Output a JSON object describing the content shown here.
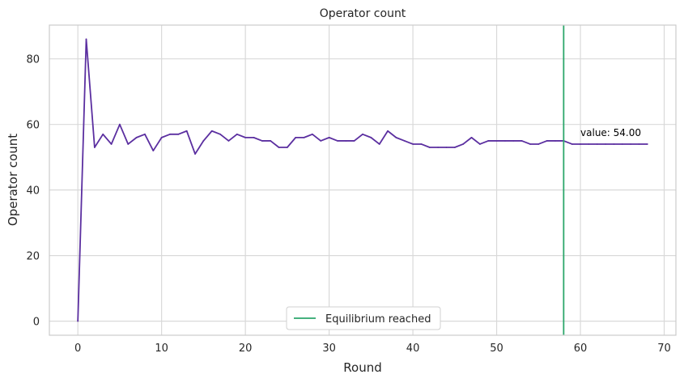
{
  "chart_data": {
    "type": "line",
    "title": "Operator count",
    "xlabel": "Round",
    "ylabel": "Operator count",
    "xlim": [
      -3.4,
      71.4
    ],
    "ylim": [
      -4.3,
      90.3
    ],
    "xticks": [
      0,
      10,
      20,
      30,
      40,
      50,
      60,
      70
    ],
    "yticks": [
      0,
      20,
      40,
      60,
      80
    ],
    "grid": true,
    "series": [
      {
        "color": "#5b2fa0",
        "x": [
          0,
          1,
          2,
          3,
          4,
          5,
          6,
          7,
          8,
          9,
          10,
          11,
          12,
          13,
          14,
          15,
          16,
          17,
          18,
          19,
          20,
          21,
          22,
          23,
          24,
          25,
          26,
          27,
          28,
          29,
          30,
          31,
          32,
          33,
          34,
          35,
          36,
          37,
          38,
          39,
          40,
          41,
          42,
          43,
          44,
          45,
          46,
          47,
          48,
          49,
          50,
          51,
          52,
          53,
          54,
          55,
          56,
          57,
          58,
          59,
          60,
          61,
          62,
          63,
          64,
          65,
          66,
          67,
          68
        ],
        "values": [
          0,
          86,
          53,
          57,
          54,
          60,
          54,
          56,
          57,
          52,
          56,
          57,
          57,
          58,
          51,
          55,
          58,
          57,
          55,
          57,
          56,
          56,
          55,
          55,
          53,
          53,
          56,
          56,
          57,
          55,
          56,
          55,
          55,
          55,
          57,
          56,
          54,
          58,
          56,
          55,
          54,
          54,
          53,
          53,
          53,
          53,
          54,
          56,
          54,
          55,
          55,
          55,
          55,
          55,
          54,
          54,
          55,
          55,
          55,
          54,
          54,
          54,
          54,
          54,
          54,
          54,
          54,
          54,
          54
        ]
      }
    ],
    "vline": {
      "x": 58,
      "label": "Equilibrium reached",
      "color": "#2ca66b"
    },
    "annotation": {
      "text": "value: 54.00",
      "x": 60,
      "y": 56.5
    },
    "legend_placement": "bottom-center"
  }
}
